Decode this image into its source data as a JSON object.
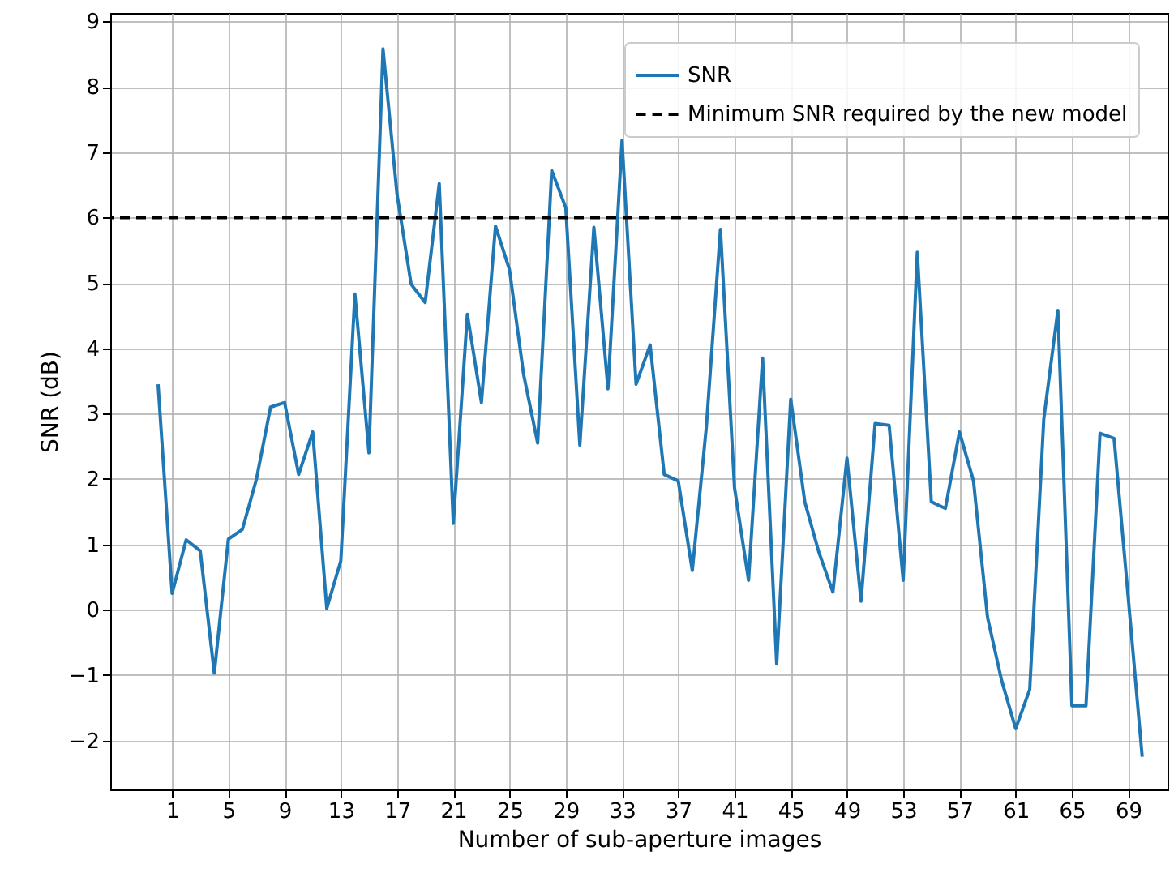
{
  "chart_data": {
    "type": "line",
    "xlabel": "Number of sub-aperture images",
    "ylabel": "SNR (dB)",
    "x": [
      0,
      1,
      2,
      3,
      4,
      5,
      6,
      7,
      8,
      9,
      10,
      11,
      12,
      13,
      14,
      15,
      16,
      17,
      18,
      19,
      20,
      21,
      22,
      23,
      24,
      25,
      26,
      27,
      28,
      29,
      30,
      31,
      32,
      33,
      34,
      35,
      36,
      37,
      38,
      39,
      40,
      41,
      42,
      43,
      44,
      45,
      46,
      47,
      48,
      49,
      50,
      51,
      52,
      53,
      54,
      55,
      56,
      57,
      58,
      59,
      60,
      61,
      62,
      63,
      64,
      65,
      66,
      67,
      68,
      69,
      70
    ],
    "series": [
      {
        "name": "SNR",
        "color": "#1f77b4",
        "values": [
          3.45,
          0.25,
          1.07,
          0.9,
          -0.97,
          1.08,
          1.23,
          2.0,
          3.1,
          3.17,
          2.07,
          2.72,
          0.02,
          0.75,
          4.83,
          2.4,
          8.58,
          6.35,
          4.98,
          4.7,
          6.52,
          1.32,
          4.52,
          3.17,
          5.87,
          5.2,
          3.6,
          2.55,
          6.72,
          6.15,
          2.52,
          5.85,
          3.38,
          7.18,
          3.45,
          4.05,
          2.07,
          1.97,
          0.6,
          2.8,
          5.82,
          1.87,
          0.45,
          3.85,
          -0.83,
          3.22,
          1.65,
          0.88,
          0.27,
          2.32,
          0.13,
          2.85,
          2.82,
          0.45,
          5.47,
          1.65,
          1.55,
          2.72,
          1.97,
          -0.12,
          -1.08,
          -1.82,
          -1.22,
          2.92,
          4.58,
          -1.47,
          -1.47,
          2.7,
          2.62,
          0.2,
          -2.25
        ]
      }
    ],
    "ref_lines": [
      {
        "axis": "y",
        "value": 6,
        "label": "Minimum SNR required by the new model",
        "color": "#000000",
        "line_style": "dashed"
      }
    ],
    "xlim": [
      -3.4,
      71.8
    ],
    "ylim": [
      -2.75,
      9.13
    ],
    "xticks": [
      1,
      5,
      9,
      13,
      17,
      21,
      25,
      29,
      33,
      37,
      41,
      45,
      49,
      53,
      57,
      61,
      65,
      69
    ],
    "yticks": [
      -2,
      -1,
      0,
      1,
      2,
      3,
      4,
      5,
      6,
      7,
      8,
      9
    ],
    "grid": true,
    "legend": "top right",
    "line_style": "solid"
  }
}
